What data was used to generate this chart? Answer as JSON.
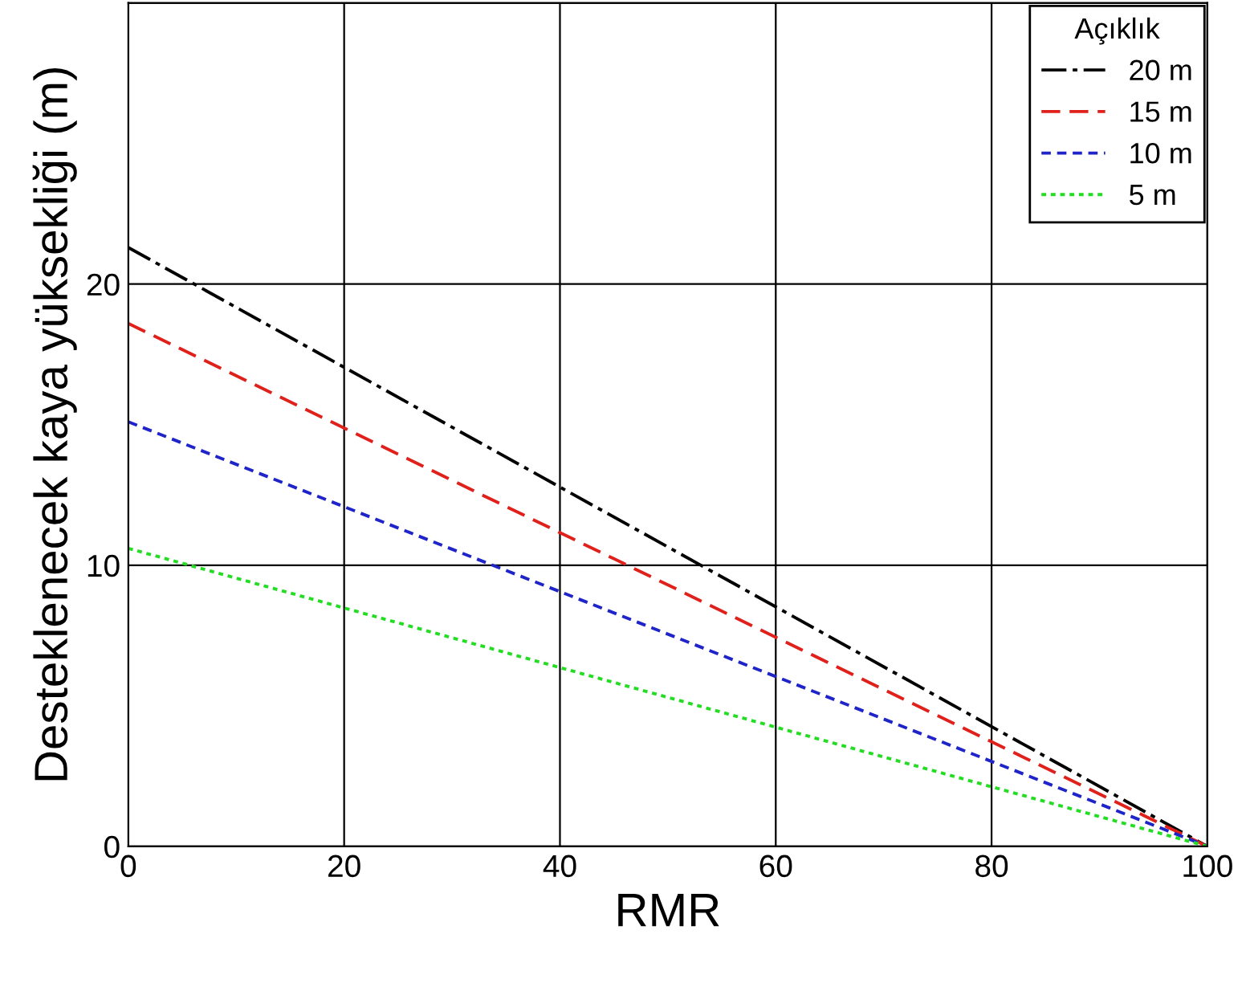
{
  "chart_data": {
    "type": "line",
    "xlabel": "RMR",
    "ylabel": "Desteklenecek kaya yüksekliği (m)",
    "legend_title": "Açıklık",
    "x": [
      0,
      100
    ],
    "series": [
      {
        "name": "20 m",
        "color": "#000000",
        "line_style": "dashdot",
        "values": [
          21.3,
          0
        ]
      },
      {
        "name": "15 m",
        "color": "#e0201b",
        "line_style": "dashed",
        "values": [
          18.6,
          0
        ]
      },
      {
        "name": "10 m",
        "color": "#1f24c8",
        "line_style": "dashed",
        "values": [
          15.1,
          0
        ]
      },
      {
        "name": "5 m",
        "color": "#22dd22",
        "line_style": "dotted",
        "values": [
          10.6,
          0
        ]
      }
    ],
    "xlim": [
      0,
      100
    ],
    "ylim": [
      0,
      30
    ],
    "xticks": [
      0,
      20,
      40,
      60,
      80,
      100
    ],
    "yticks": [
      0,
      10,
      20,
      {
        "value": 30,
        "label": null
      }
    ],
    "grid": true,
    "legend": "top right",
    "marker": "none"
  }
}
